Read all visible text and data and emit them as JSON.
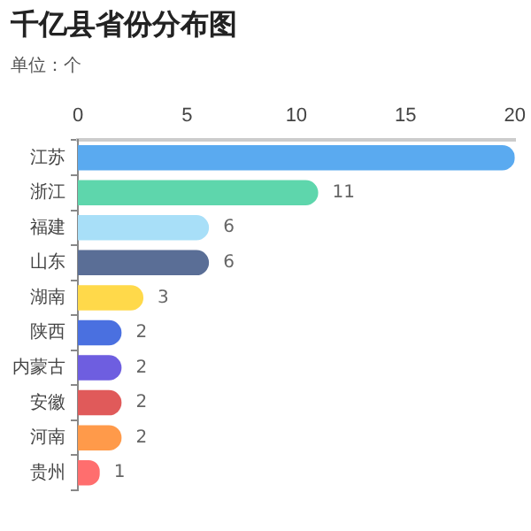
{
  "chart_data": {
    "type": "bar",
    "orientation": "horizontal",
    "title": "千亿县省份分布图",
    "subtitle": "单位：个",
    "categories": [
      "江苏",
      "浙江",
      "福建",
      "山东",
      "湖南",
      "陕西",
      "内蒙古",
      "安徽",
      "河南",
      "贵州"
    ],
    "values": [
      20,
      11,
      6,
      6,
      3,
      2,
      2,
      2,
      2,
      1
    ],
    "value_labels": [
      null,
      "11",
      "6",
      "6",
      "3",
      "2",
      "2",
      "2",
      "2",
      "1"
    ],
    "colors": [
      "#5aaaf0",
      "#5ed6ac",
      "#a8dff8",
      "#5a6e96",
      "#ffd94a",
      "#4a70e0",
      "#6e5ee0",
      "#e05a5a",
      "#ff9a4a",
      "#ff6e6e"
    ],
    "xlim": [
      0,
      20
    ],
    "xticks": [
      0,
      5,
      10,
      15,
      20
    ],
    "grid": false,
    "legend": false
  }
}
